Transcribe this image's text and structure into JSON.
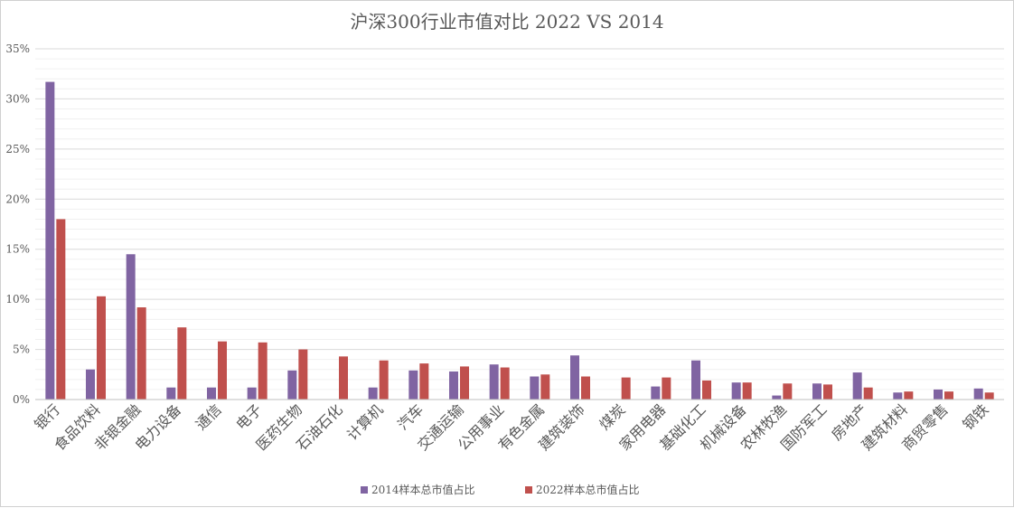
{
  "chart_data": {
    "type": "bar",
    "title": "沪深300行业市值对比 2022 VS 2014",
    "xlabel": "",
    "ylabel": "",
    "ylim": [
      0,
      35
    ],
    "yticks": [
      "0%",
      "5%",
      "10%",
      "15%",
      "20%",
      "25%",
      "30%",
      "35%"
    ],
    "grid": true,
    "legend_position": "bottom",
    "categories": [
      "银行",
      "食品饮料",
      "非银金融",
      "电力设备",
      "通信",
      "电子",
      "医药生物",
      "石油石化",
      "计算机",
      "汽车",
      "交通运输",
      "公用事业",
      "有色金属",
      "建筑装饰",
      "煤炭",
      "家用电器",
      "基础化工",
      "机械设备",
      "农林牧渔",
      "国防军工",
      "房地产",
      "建筑材料",
      "商贸零售",
      "钢铁"
    ],
    "series": [
      {
        "name": "2014样本总市值占比",
        "color": "#8064a2",
        "values": [
          31.7,
          3.0,
          14.5,
          1.2,
          1.2,
          1.2,
          2.9,
          0,
          1.2,
          2.9,
          2.8,
          3.5,
          2.3,
          4.4,
          0,
          1.3,
          3.9,
          1.7,
          0.4,
          1.6,
          2.7,
          0.7,
          1.0,
          1.1
        ]
      },
      {
        "name": "2022样本总市值占比",
        "color": "#c0504d",
        "values": [
          18.0,
          10.3,
          9.2,
          7.2,
          5.8,
          5.7,
          5.0,
          4.3,
          3.9,
          3.6,
          3.3,
          3.2,
          2.5,
          2.3,
          2.2,
          2.2,
          1.9,
          1.7,
          1.6,
          1.5,
          1.2,
          0.8,
          0.8,
          0.7
        ]
      }
    ]
  }
}
